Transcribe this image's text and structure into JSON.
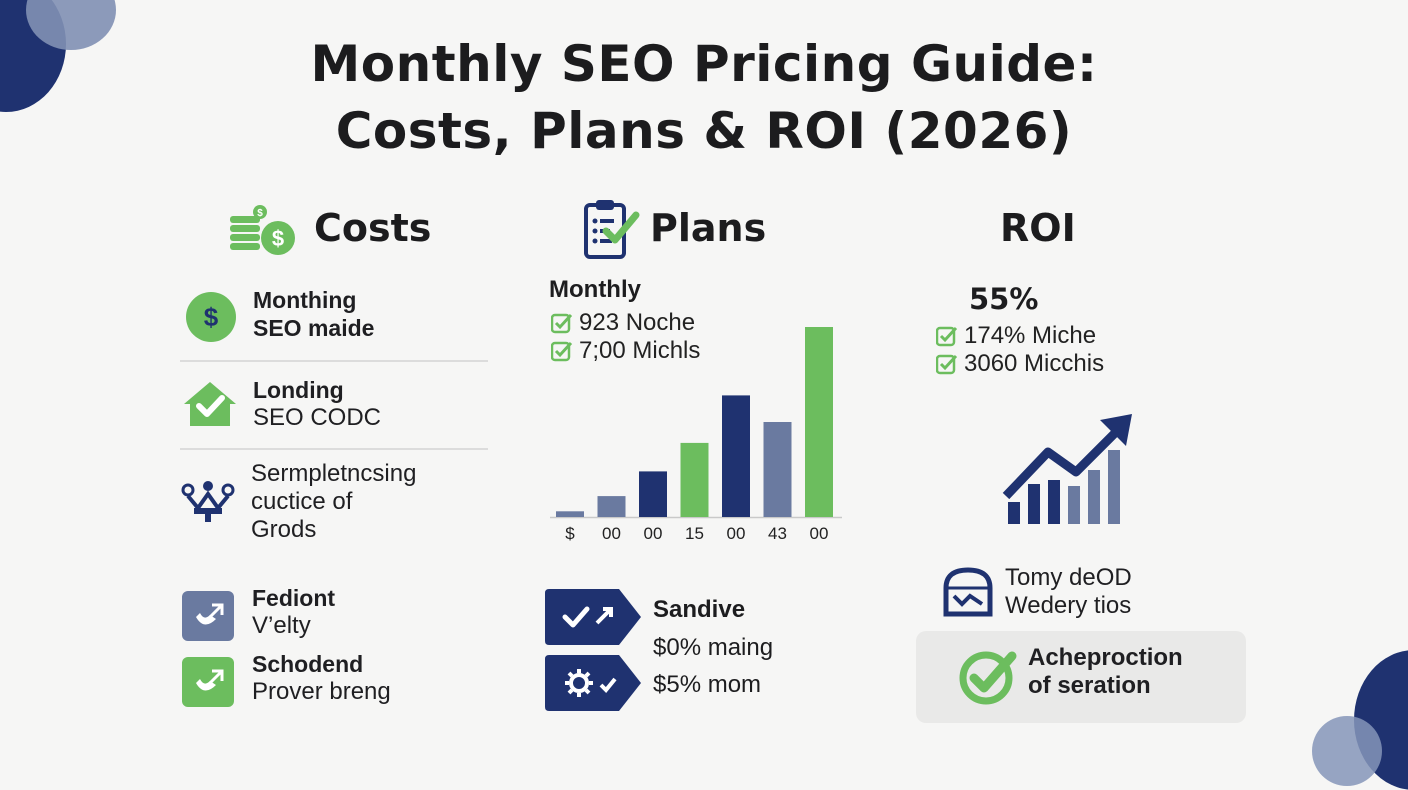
{
  "title": {
    "line1": "Monthly SEO Pricing Guide:",
    "line2": "Costs, Plans & ROI (2026)"
  },
  "colors": {
    "navy": "#1f3270",
    "green": "#6cbd5e",
    "slate": "#6a7aa0",
    "light_slate": "#7c8bb0"
  },
  "costs": {
    "heading": "Costs",
    "icon": "money-coins-icon",
    "items": [
      {
        "icon": "dollar-circle-icon",
        "lines": [
          "Monthing",
          "SEO maide"
        ]
      },
      {
        "icon": "house-check-icon",
        "lines": [
          "Londing",
          "SEO CODC"
        ]
      },
      {
        "icon": "people-network-icon",
        "lines": [
          "Sermpletncsing",
          "cuctice of",
          "Grods"
        ]
      },
      {
        "icon": "tag-arrow-icon",
        "lines": [
          "Fediont",
          "V’elty"
        ]
      },
      {
        "icon": "tag-arrow-green-icon",
        "lines": [
          "Schodend",
          "Prover breng"
        ]
      }
    ]
  },
  "plans": {
    "heading": "Plans",
    "icon": "clipboard-check-icon",
    "subheading": "Monthly",
    "checks": [
      "923 Noche",
      "7;00 Michls"
    ],
    "tags": [
      {
        "icon": "check-arrow-icon",
        "label": "Sandive",
        "value": "$0% maing"
      },
      {
        "icon": "gear-check-icon",
        "value": "$5% mom"
      }
    ]
  },
  "chart_data": {
    "type": "bar",
    "categories": [
      "$",
      "00",
      "00",
      "15",
      "00",
      "43",
      "00"
    ],
    "values": [
      3,
      11,
      24,
      39,
      64,
      50,
      100
    ],
    "colors": [
      "#6a7aa0",
      "#6a7aa0",
      "#1f3270",
      "#6cbd5e",
      "#1f3270",
      "#6a7aa0",
      "#6cbd5e"
    ],
    "title": "",
    "xlabel": "",
    "ylabel": "",
    "ylim": [
      0,
      100
    ],
    "grid": false
  },
  "roi": {
    "heading": "ROI",
    "stat": "55%",
    "checks": [
      "174% Miche",
      "3060 Micchis"
    ],
    "growth_icon": "growth-chart-icon",
    "feature": {
      "icon": "shield-chart-icon",
      "lines": [
        "Tomy deOD",
        "Wedery tios"
      ]
    },
    "card": {
      "icon": "check-circle-icon",
      "lines": [
        "Acheproction",
        "of seration"
      ]
    }
  }
}
